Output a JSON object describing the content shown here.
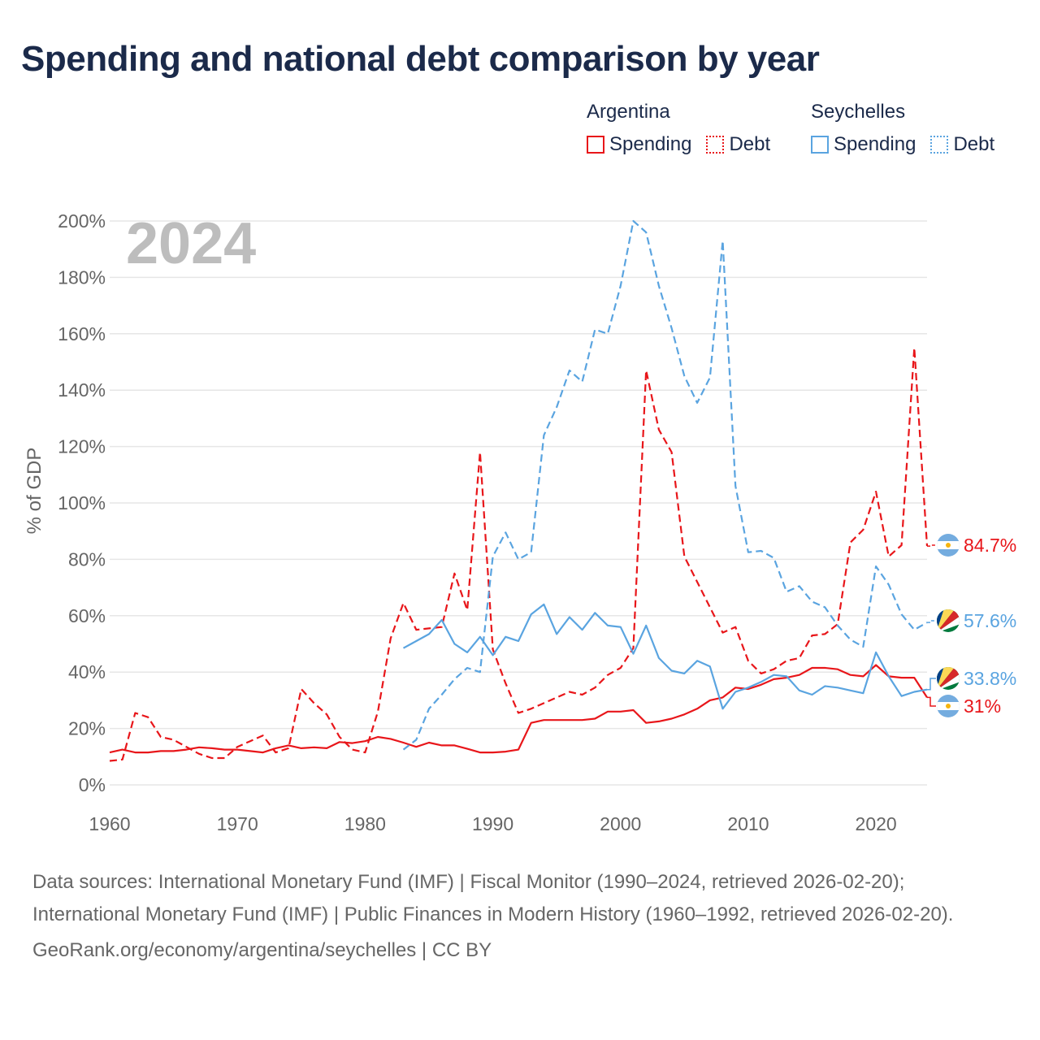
{
  "title": "Spending and national debt comparison by year",
  "legend": {
    "groups": [
      {
        "country": "Argentina",
        "color": "#e8161a",
        "items": [
          {
            "label": "Spending",
            "style": "solid"
          },
          {
            "label": "Debt",
            "style": "dotted"
          }
        ]
      },
      {
        "country": "Seychelles",
        "color": "#5aa4e0",
        "items": [
          {
            "label": "Spending",
            "style": "solid"
          },
          {
            "label": "Debt",
            "style": "dotted"
          }
        ]
      }
    ]
  },
  "footer": {
    "sources": "Data sources: International Monetary Fund (IMF) | Fiscal Monitor (1990–2024, retrieved 2026-02-20); International Monetary Fund (IMF) | Public Finances in Modern History (1960–1992, retrieved 2026-02-20).",
    "credit": "GeoRank.org/economy/argentina/seychelles | CC BY"
  },
  "chart_data": {
    "type": "line",
    "year_label": "2024",
    "ylabel": "% of GDP",
    "xlabel": "",
    "xlim": [
      1960,
      2024
    ],
    "ylim": [
      0,
      200
    ],
    "xticks": [
      1960,
      1970,
      1980,
      1990,
      2000,
      2010,
      2020
    ],
    "yticks": [
      0,
      20,
      40,
      60,
      80,
      100,
      120,
      140,
      160,
      180,
      200
    ],
    "ytick_labels": [
      "0%",
      "20%",
      "40%",
      "60%",
      "80%",
      "100%",
      "120%",
      "140%",
      "160%",
      "180%",
      "200%"
    ],
    "grid": true,
    "series": [
      {
        "name": "Argentina Spending",
        "country": "Argentina",
        "kind": "spending",
        "color": "#e8161a",
        "dash": false,
        "end_label": "31%",
        "x": [
          1960,
          1961,
          1962,
          1963,
          1964,
          1965,
          1966,
          1967,
          1968,
          1969,
          1970,
          1971,
          1972,
          1973,
          1974,
          1975,
          1976,
          1977,
          1978,
          1979,
          1980,
          1981,
          1982,
          1983,
          1984,
          1985,
          1986,
          1987,
          1988,
          1989,
          1990,
          1991,
          1992,
          1993,
          1994,
          1995,
          1996,
          1997,
          1998,
          1999,
          2000,
          2001,
          2002,
          2003,
          2004,
          2005,
          2006,
          2007,
          2008,
          2009,
          2010,
          2011,
          2012,
          2013,
          2014,
          2015,
          2016,
          2017,
          2018,
          2019,
          2020,
          2021,
          2022,
          2023,
          2024
        ],
        "values": [
          11.5,
          12.5,
          11.5,
          11.5,
          12,
          12,
          12.5,
          13.3,
          13,
          12.5,
          12.5,
          12,
          11.5,
          13,
          14,
          13,
          13.3,
          13,
          15.2,
          14.8,
          15.5,
          17,
          16.3,
          15,
          13.5,
          15,
          14,
          14,
          12.8,
          11.5,
          11.5,
          11.8,
          12.5,
          22,
          23,
          23,
          23,
          23,
          23.5,
          26,
          26,
          26.5,
          22,
          22.5,
          23.5,
          25,
          27,
          30,
          31,
          34.5,
          34,
          35.5,
          37.5,
          38,
          39,
          41.5,
          41.5,
          41,
          39,
          38.5,
          42.5,
          38.5,
          38,
          38,
          31
        ]
      },
      {
        "name": "Argentina Debt",
        "country": "Argentina",
        "kind": "debt",
        "color": "#e8161a",
        "dash": true,
        "end_label": "84.7%",
        "x": [
          1960,
          1961,
          1962,
          1963,
          1964,
          1965,
          1966,
          1967,
          1968,
          1969,
          1970,
          1971,
          1972,
          1973,
          1974,
          1975,
          1976,
          1977,
          1978,
          1979,
          1980,
          1981,
          1982,
          1983,
          1984,
          1985,
          1986,
          1987,
          1988,
          1989,
          1990,
          1991,
          1992,
          1993,
          1994,
          1995,
          1996,
          1997,
          1998,
          1999,
          2000,
          2001,
          2002,
          2003,
          2004,
          2005,
          2006,
          2007,
          2008,
          2009,
          2010,
          2011,
          2012,
          2013,
          2014,
          2015,
          2016,
          2017,
          2018,
          2019,
          2020,
          2021,
          2022,
          2023,
          2024
        ],
        "values": [
          8.5,
          9,
          25.5,
          24,
          17,
          16,
          13.5,
          11,
          9.5,
          9.5,
          13.5,
          15.5,
          17.5,
          11.5,
          13,
          34,
          29,
          25,
          17,
          12.5,
          11.5,
          26,
          52,
          64.5,
          55,
          55.5,
          56,
          75,
          62,
          118,
          48,
          36,
          25.5,
          27,
          29,
          31,
          33,
          32,
          34.5,
          39,
          41.5,
          48.5,
          147,
          126,
          118,
          81,
          72,
          63,
          54,
          56,
          44,
          39.5,
          41,
          44,
          45,
          53,
          53.5,
          57,
          86,
          90.5,
          104,
          81,
          85,
          155,
          84.7
        ]
      },
      {
        "name": "Seychelles Spending",
        "country": "Seychelles",
        "kind": "spending",
        "color": "#5aa4e0",
        "dash": false,
        "end_label": "33.8%",
        "x": [
          1983,
          1984,
          1985,
          1986,
          1987,
          1988,
          1989,
          1990,
          1991,
          1992,
          1993,
          1994,
          1995,
          1996,
          1997,
          1998,
          1999,
          2000,
          2001,
          2002,
          2003,
          2004,
          2005,
          2006,
          2007,
          2008,
          2009,
          2010,
          2011,
          2012,
          2013,
          2014,
          2015,
          2016,
          2017,
          2018,
          2019,
          2020,
          2021,
          2022,
          2023,
          2024
        ],
        "values": [
          48.5,
          51,
          53.5,
          58.5,
          50,
          47,
          52.5,
          46,
          52.5,
          51,
          60.5,
          64,
          53.5,
          59.5,
          55,
          61,
          56.5,
          56,
          46.5,
          56.5,
          45,
          40.5,
          39.5,
          44,
          42,
          27,
          33,
          34.5,
          36.5,
          39,
          38.5,
          33.5,
          32,
          35,
          34.5,
          33.5,
          32.5,
          47,
          38.5,
          31.5,
          33,
          33.8
        ]
      },
      {
        "name": "Seychelles Debt",
        "country": "Seychelles",
        "kind": "debt",
        "color": "#5aa4e0",
        "dash": true,
        "end_label": "57.6%",
        "x": [
          1983,
          1984,
          1985,
          1986,
          1987,
          1988,
          1989,
          1990,
          1991,
          1992,
          1993,
          1994,
          1995,
          1996,
          1997,
          1998,
          1999,
          2000,
          2001,
          2002,
          2003,
          2004,
          2005,
          2006,
          2007,
          2008,
          2009,
          2010,
          2011,
          2012,
          2013,
          2014,
          2015,
          2016,
          2017,
          2018,
          2019,
          2020,
          2021,
          2022,
          2023,
          2024
        ],
        "values": [
          12.5,
          16,
          27,
          32,
          37.5,
          41.5,
          40,
          81,
          89.5,
          80,
          82.5,
          124,
          134,
          147,
          143,
          161.5,
          160,
          177,
          200,
          196,
          177,
          162,
          145,
          135.5,
          144.5,
          193,
          106,
          82.5,
          83,
          80.5,
          68.5,
          70.5,
          65,
          63,
          56.5,
          51.5,
          49,
          77.5,
          71,
          60.5,
          55,
          57.6
        ]
      }
    ]
  }
}
